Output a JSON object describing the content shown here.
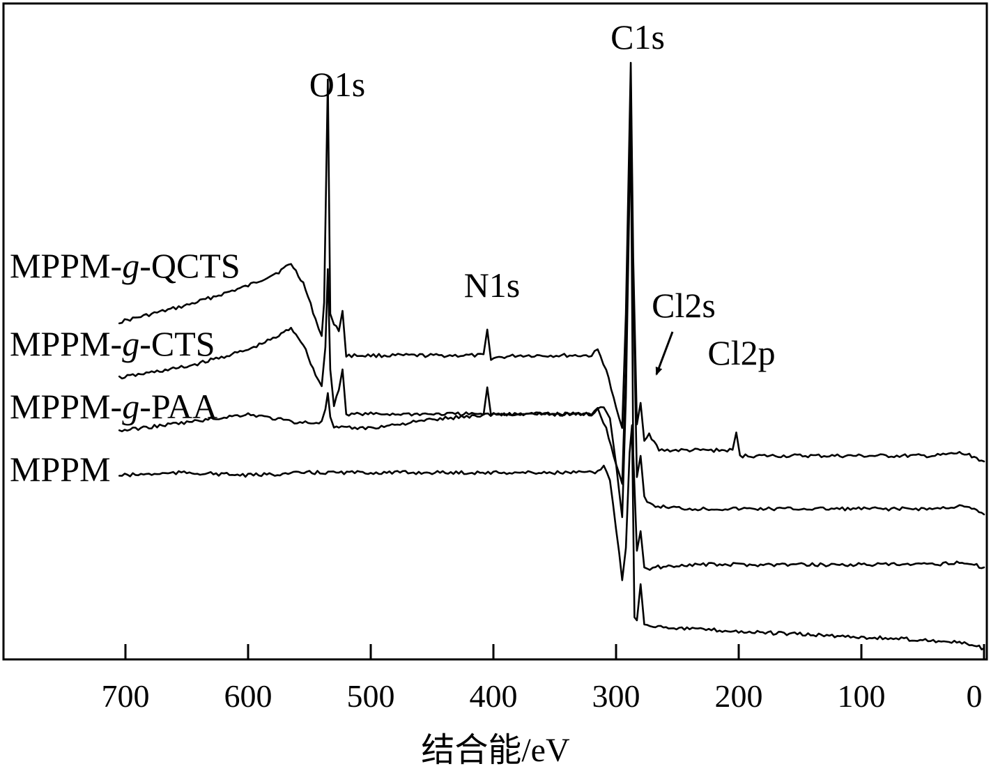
{
  "chart_data": {
    "type": "line",
    "xlabel": "结合能/eV",
    "ylabel": "",
    "xlim": [
      700,
      0
    ],
    "x_reversed": true,
    "xticks": [
      700,
      600,
      500,
      400,
      300,
      200,
      100,
      0
    ],
    "grid": false,
    "legend": "labels placed left of each trace",
    "colors": {
      "line": "#000000",
      "axes": "#000000"
    },
    "series": [
      {
        "name": "MPPM-g-QCTS",
        "label_parts": [
          "MPPM-",
          "g",
          "-QCTS"
        ],
        "points": [
          [
            705,
            48.5
          ],
          [
            650,
            51.5
          ],
          [
            600,
            55.0
          ],
          [
            575,
            57.5
          ],
          [
            565,
            59.0
          ],
          [
            555,
            55.5
          ],
          [
            545,
            49.0
          ],
          [
            540,
            46.0
          ],
          [
            538,
            52.0
          ],
          [
            535,
            92.0
          ],
          [
            533,
            50.0
          ],
          [
            530,
            48.0
          ],
          [
            526,
            47.0
          ],
          [
            523,
            50.5
          ],
          [
            520,
            42.5
          ],
          [
            500,
            42.5
          ],
          [
            420,
            42.5
          ],
          [
            408,
            42.5
          ],
          [
            405,
            47.0
          ],
          [
            402,
            42.0
          ],
          [
            380,
            42.5
          ],
          [
            320,
            42.5
          ],
          [
            315,
            43.5
          ],
          [
            308,
            40.0
          ],
          [
            300,
            33.0
          ],
          [
            295,
            29.5
          ],
          [
            292,
            50.0
          ],
          [
            288,
            95.0
          ],
          [
            286,
            60.0
          ],
          [
            283,
            30.0
          ],
          [
            280,
            34.0
          ],
          [
            277,
            27.5
          ],
          [
            273,
            28.5
          ],
          [
            265,
            25.5
          ],
          [
            240,
            25.5
          ],
          [
            205,
            25.5
          ],
          [
            202,
            28.5
          ],
          [
            199,
            24.5
          ],
          [
            150,
            24.5
          ],
          [
            100,
            24.5
          ],
          [
            40,
            24.5
          ],
          [
            20,
            25.0
          ],
          [
            10,
            24.5
          ],
          [
            0,
            23.5
          ]
        ]
      },
      {
        "name": "MPPM-g-CTS",
        "label_parts": [
          "MPPM-",
          "g",
          "-CTS"
        ],
        "points": [
          [
            705,
            38.5
          ],
          [
            650,
            40.5
          ],
          [
            600,
            43.5
          ],
          [
            575,
            46.0
          ],
          [
            565,
            47.5
          ],
          [
            555,
            44.5
          ],
          [
            545,
            39.0
          ],
          [
            540,
            37.0
          ],
          [
            537,
            44.0
          ],
          [
            535,
            58.0
          ],
          [
            533,
            40.0
          ],
          [
            530,
            33.5
          ],
          [
            526,
            36.5
          ],
          [
            523,
            40.0
          ],
          [
            520,
            32.0
          ],
          [
            500,
            32.0
          ],
          [
            420,
            32.0
          ],
          [
            408,
            32.0
          ],
          [
            405,
            36.5
          ],
          [
            402,
            32.0
          ],
          [
            380,
            32.0
          ],
          [
            320,
            32.0
          ],
          [
            315,
            33.0
          ],
          [
            308,
            29.5
          ],
          [
            300,
            23.0
          ],
          [
            295,
            19.5
          ],
          [
            292,
            40.0
          ],
          [
            288,
            92.0
          ],
          [
            286,
            55.0
          ],
          [
            283,
            21.0
          ],
          [
            280,
            24.5
          ],
          [
            277,
            17.0
          ],
          [
            270,
            15.5
          ],
          [
            240,
            15.0
          ],
          [
            200,
            15.0
          ],
          [
            100,
            15.0
          ],
          [
            40,
            15.0
          ],
          [
            20,
            15.5
          ],
          [
            10,
            15.0
          ],
          [
            0,
            14.0
          ]
        ]
      },
      {
        "name": "MPPM-g-PAA",
        "label_parts": [
          "MPPM-",
          "g",
          "-PAA"
        ],
        "points": [
          [
            705,
            29.0
          ],
          [
            650,
            30.5
          ],
          [
            600,
            32.0
          ],
          [
            560,
            30.5
          ],
          [
            540,
            30.5
          ],
          [
            537,
            33.0
          ],
          [
            535,
            35.5
          ],
          [
            533,
            31.5
          ],
          [
            530,
            29.5
          ],
          [
            526,
            29.5
          ],
          [
            500,
            29.5
          ],
          [
            450,
            31.0
          ],
          [
            400,
            32.0
          ],
          [
            350,
            32.0
          ],
          [
            320,
            32.0
          ],
          [
            315,
            33.0
          ],
          [
            310,
            33.5
          ],
          [
            305,
            31.5
          ],
          [
            300,
            23.0
          ],
          [
            295,
            13.5
          ],
          [
            292,
            35.0
          ],
          [
            288,
            85.0
          ],
          [
            286,
            25.0
          ],
          [
            283,
            7.5
          ],
          [
            280,
            11.0
          ],
          [
            277,
            4.5
          ],
          [
            275,
            4.0
          ],
          [
            270,
            4.5
          ],
          [
            240,
            5.0
          ],
          [
            200,
            5.0
          ],
          [
            100,
            5.0
          ],
          [
            40,
            5.0
          ],
          [
            20,
            5.5
          ],
          [
            10,
            5.0
          ],
          [
            0,
            4.5
          ]
        ]
      },
      {
        "name": "MPPM",
        "label_parts": [
          "MPPM"
        ],
        "points": [
          [
            705,
            21.0
          ],
          [
            650,
            21.5
          ],
          [
            600,
            21.0
          ],
          [
            550,
            21.5
          ],
          [
            500,
            21.5
          ],
          [
            450,
            21.5
          ],
          [
            400,
            21.5
          ],
          [
            350,
            21.5
          ],
          [
            315,
            21.5
          ],
          [
            310,
            23.0
          ],
          [
            305,
            20.0
          ],
          [
            300,
            11.5
          ],
          [
            295,
            2.5
          ],
          [
            292,
            8.0
          ],
          [
            289,
            25.0
          ],
          [
            287,
            30.0
          ],
          [
            285,
            -4.5
          ],
          [
            283,
            -5.0
          ],
          [
            280,
            1.5
          ],
          [
            277,
            -5.5
          ],
          [
            270,
            -6.0
          ],
          [
            240,
            -6.5
          ],
          [
            200,
            -7.0
          ],
          [
            150,
            -7.5
          ],
          [
            100,
            -8.0
          ],
          [
            50,
            -8.5
          ],
          [
            20,
            -9.0
          ],
          [
            10,
            -9.5
          ],
          [
            0,
            -10.0
          ]
        ]
      }
    ],
    "annotations": [
      {
        "text": "C1s",
        "at": 288
      },
      {
        "text": "O1s",
        "at": 535
      },
      {
        "text": "N1s",
        "at": 405
      },
      {
        "text": "Cl2s",
        "at": 270,
        "arrow": true
      },
      {
        "text": "Cl2p",
        "at": 202
      }
    ]
  }
}
